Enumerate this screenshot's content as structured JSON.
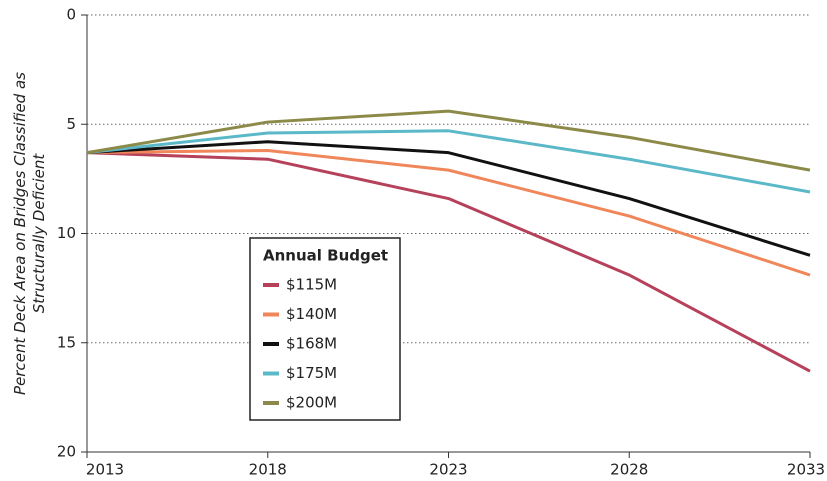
{
  "chart_data": {
    "type": "line",
    "ylabel": [
      "Percent Deck Area on Bridges Classified as",
      "Structurally Deficient"
    ],
    "x": [
      2013,
      2018,
      2023,
      2028,
      2033
    ],
    "xlim": [
      2013,
      2033
    ],
    "xticks": [
      2013,
      2018,
      2023,
      2028,
      2033
    ],
    "ylim": [
      0,
      20
    ],
    "yticks": [
      0,
      5,
      10,
      15,
      20
    ],
    "invert_y": true,
    "grid": true,
    "legend_title": "Annual Budget",
    "legend": "lower left",
    "series": [
      {
        "name": "$115M",
        "color": "#b5415a",
        "values": [
          6.3,
          6.6,
          8.4,
          11.9,
          16.3
        ]
      },
      {
        "name": "$140M",
        "color": "#f0875a",
        "values": [
          6.3,
          6.2,
          7.1,
          9.2,
          11.9
        ]
      },
      {
        "name": "$168M",
        "color": "#111111",
        "values": [
          6.3,
          5.8,
          6.3,
          8.4,
          11.0
        ]
      },
      {
        "name": "$175M",
        "color": "#5bb8c8",
        "values": [
          6.3,
          5.4,
          5.3,
          6.6,
          8.1
        ]
      },
      {
        "name": "$200M",
        "color": "#8c8a48",
        "values": [
          6.3,
          4.9,
          4.4,
          5.6,
          7.1
        ]
      }
    ]
  }
}
